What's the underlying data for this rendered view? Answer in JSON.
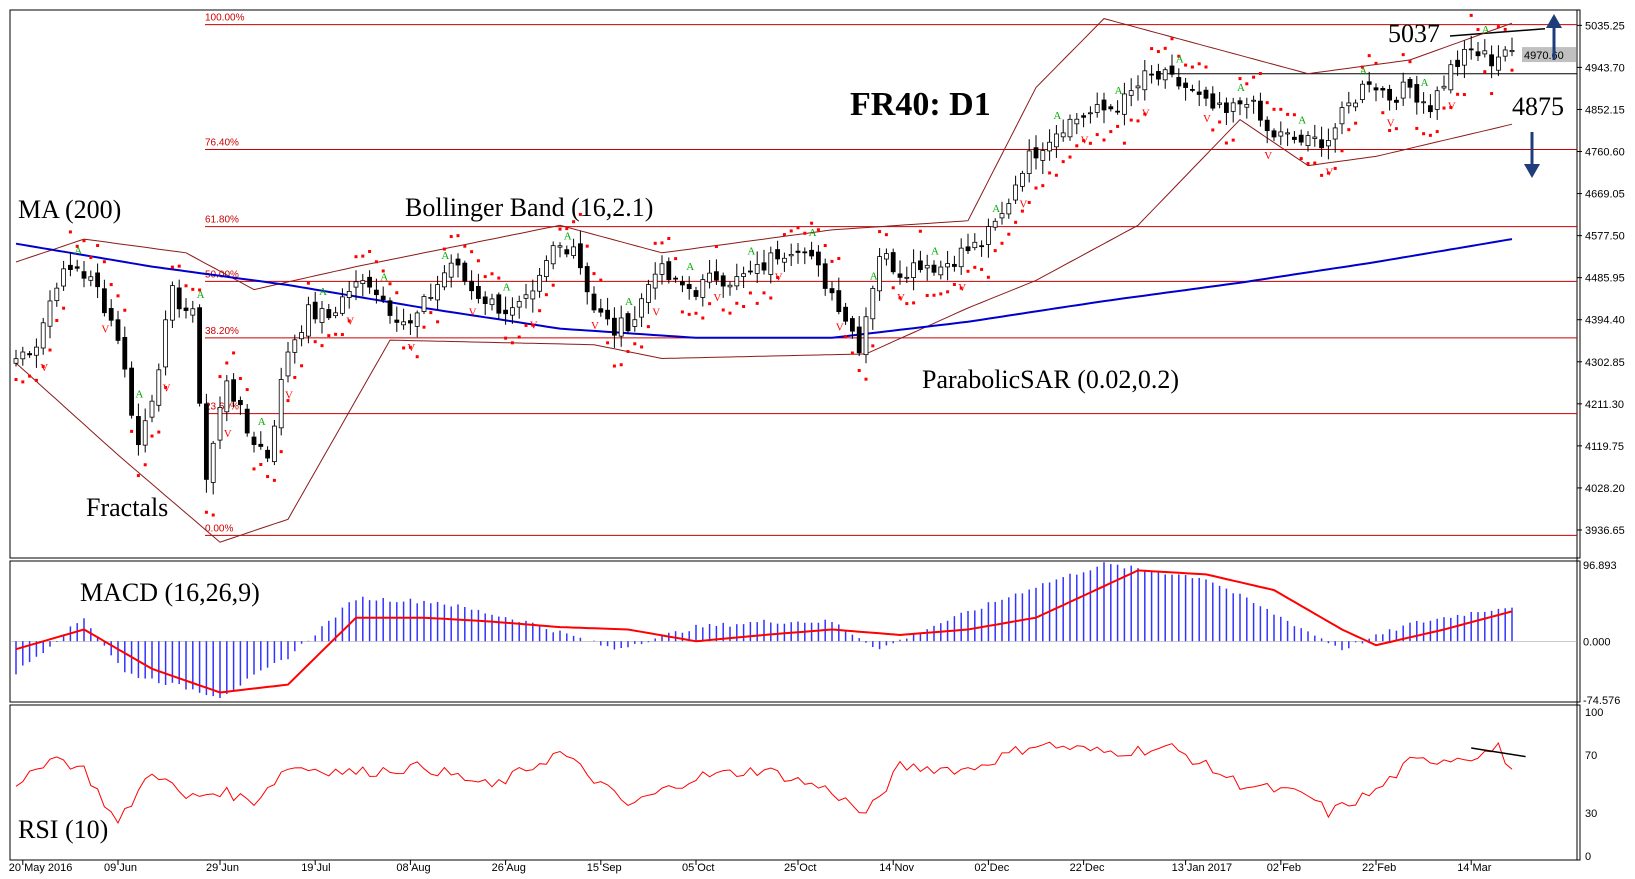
{
  "chart_data": {
    "type": "candlestick",
    "title": "FR40: D1",
    "y_ticks": [
      "5035.25",
      "4943.70",
      "4852.15",
      "4760.60",
      "4669.05",
      "4577.50",
      "4485.95",
      "4394.40",
      "4302.85",
      "4211.30",
      "4119.75",
      "4028.20",
      "3936.65"
    ],
    "current_price_label": "4970.60",
    "x_ticks": [
      "20 May 2016",
      "09 Jun",
      "29 Jun",
      "19 Jul",
      "08 Aug",
      "26 Aug",
      "15 Sep",
      "05 Oct",
      "25 Oct",
      "14 Nov",
      "02 Dec",
      "22 Dec",
      "13 Jan 2017",
      "02 Feb",
      "22 Feb",
      "14 Mar"
    ],
    "fibonacci": [
      {
        "label": "100.00%",
        "value": 5037
      },
      {
        "label": "76.40%",
        "value": 4765
      },
      {
        "label": "61.80%",
        "value": 4597
      },
      {
        "label": "50.00%",
        "value": 4478
      },
      {
        "label": "38.20%",
        "value": 4355
      },
      {
        "label": "23.60%",
        "value": 4190
      },
      {
        "label": "0.00%",
        "value": 3925
      }
    ],
    "levels": {
      "resistance": "5037",
      "support": "4875"
    },
    "indicator_labels": {
      "ma": "MA (200)",
      "bollinger": "Bollinger Band (16,2.1)",
      "fractals": "Fractals",
      "sar": "ParabolicSAR (0.02,0.2)",
      "macd": "MACD (16,26,9)",
      "rsi": "RSI (10)"
    },
    "macd_ticks": [
      "96.893",
      "0.000",
      "-74.576"
    ],
    "rsi_ticks": [
      "100",
      "70",
      "30",
      "0"
    ],
    "close_anchors": [
      [
        0,
        4310
      ],
      [
        3,
        4345
      ],
      [
        6,
        4480
      ],
      [
        9,
        4510
      ],
      [
        12,
        4460
      ],
      [
        15,
        4360
      ],
      [
        18,
        4120
      ],
      [
        20,
        4230
      ],
      [
        23,
        4450
      ],
      [
        26,
        4400
      ],
      [
        28,
        4050
      ],
      [
        31,
        4270
      ],
      [
        34,
        4150
      ],
      [
        37,
        4100
      ],
      [
        40,
        4330
      ],
      [
        43,
        4410
      ],
      [
        46,
        4400
      ],
      [
        49,
        4460
      ],
      [
        52,
        4480
      ],
      [
        55,
        4420
      ],
      [
        58,
        4380
      ],
      [
        61,
        4450
      ],
      [
        64,
        4520
      ],
      [
        67,
        4460
      ],
      [
        70,
        4430
      ],
      [
        73,
        4410
      ],
      [
        76,
        4440
      ],
      [
        79,
        4550
      ],
      [
        82,
        4560
      ],
      [
        85,
        4420
      ],
      [
        88,
        4370
      ],
      [
        91,
        4400
      ],
      [
        94,
        4510
      ],
      [
        97,
        4470
      ],
      [
        100,
        4460
      ],
      [
        103,
        4490
      ],
      [
        106,
        4480
      ],
      [
        109,
        4500
      ],
      [
        112,
        4540
      ],
      [
        115,
        4560
      ],
      [
        118,
        4500
      ],
      [
        121,
        4430
      ],
      [
        124,
        4340
      ],
      [
        127,
        4540
      ],
      [
        130,
        4500
      ],
      [
        133,
        4520
      ],
      [
        136,
        4510
      ],
      [
        139,
        4540
      ],
      [
        142,
        4560
      ],
      [
        145,
        4620
      ],
      [
        148,
        4730
      ],
      [
        151,
        4780
      ],
      [
        154,
        4820
      ],
      [
        157,
        4840
      ],
      [
        160,
        4850
      ],
      [
        163,
        4870
      ],
      [
        166,
        4920
      ],
      [
        169,
        4920
      ],
      [
        172,
        4900
      ],
      [
        175,
        4860
      ],
      [
        178,
        4840
      ],
      [
        181,
        4880
      ],
      [
        184,
        4800
      ],
      [
        187,
        4790
      ],
      [
        190,
        4780
      ],
      [
        193,
        4790
      ],
      [
        196,
        4860
      ],
      [
        199,
        4920
      ],
      [
        202,
        4880
      ],
      [
        205,
        4900
      ],
      [
        208,
        4860
      ],
      [
        211,
        4940
      ],
      [
        214,
        4980
      ],
      [
        217,
        4960
      ],
      [
        219,
        4985
      ],
      [
        220,
        4965
      ]
    ],
    "ma200_anchors": [
      [
        0,
        4560
      ],
      [
        20,
        4510
      ],
      [
        40,
        4470
      ],
      [
        60,
        4420
      ],
      [
        80,
        4375
      ],
      [
        100,
        4355
      ],
      [
        120,
        4355
      ],
      [
        140,
        4390
      ],
      [
        160,
        4435
      ],
      [
        180,
        4475
      ],
      [
        200,
        4520
      ],
      [
        220,
        4570
      ]
    ],
    "bb_upper_anchors": [
      [
        0,
        4520
      ],
      [
        10,
        4570
      ],
      [
        25,
        4540
      ],
      [
        35,
        4460
      ],
      [
        50,
        4510
      ],
      [
        80,
        4600
      ],
      [
        95,
        4540
      ],
      [
        120,
        4590
      ],
      [
        140,
        4610
      ],
      [
        150,
        4900
      ],
      [
        160,
        5050
      ],
      [
        175,
        4990
      ],
      [
        190,
        4930
      ],
      [
        205,
        4960
      ],
      [
        220,
        5040
      ]
    ],
    "bb_lower_anchors": [
      [
        0,
        4300
      ],
      [
        15,
        4100
      ],
      [
        30,
        3910
      ],
      [
        40,
        3960
      ],
      [
        55,
        4350
      ],
      [
        85,
        4340
      ],
      [
        95,
        4310
      ],
      [
        125,
        4320
      ],
      [
        140,
        4420
      ],
      [
        150,
        4480
      ],
      [
        165,
        4600
      ],
      [
        180,
        4830
      ],
      [
        190,
        4730
      ],
      [
        200,
        4750
      ],
      [
        220,
        4820
      ]
    ],
    "macd_line_anchors": [
      [
        0,
        -10
      ],
      [
        10,
        15
      ],
      [
        20,
        -35
      ],
      [
        30,
        -65
      ],
      [
        40,
        -55
      ],
      [
        50,
        30
      ],
      [
        60,
        30
      ],
      [
        70,
        25
      ],
      [
        80,
        18
      ],
      [
        90,
        15
      ],
      [
        100,
        0
      ],
      [
        110,
        8
      ],
      [
        120,
        15
      ],
      [
        130,
        8
      ],
      [
        140,
        15
      ],
      [
        150,
        30
      ],
      [
        165,
        90
      ],
      [
        175,
        85
      ],
      [
        185,
        65
      ],
      [
        195,
        15
      ],
      [
        200,
        -5
      ],
      [
        210,
        15
      ],
      [
        220,
        38
      ]
    ],
    "macd_hist_anchors": [
      [
        0,
        -40
      ],
      [
        10,
        30
      ],
      [
        16,
        -40
      ],
      [
        30,
        -70
      ],
      [
        40,
        -20
      ],
      [
        50,
        55
      ],
      [
        62,
        50
      ],
      [
        75,
        25
      ],
      [
        88,
        -10
      ],
      [
        100,
        18
      ],
      [
        110,
        25
      ],
      [
        120,
        25
      ],
      [
        127,
        -10
      ],
      [
        135,
        20
      ],
      [
        150,
        70
      ],
      [
        160,
        98
      ],
      [
        175,
        80
      ],
      [
        185,
        35
      ],
      [
        195,
        -10
      ],
      [
        205,
        22
      ],
      [
        215,
        38
      ],
      [
        220,
        45
      ]
    ],
    "rsi_anchors": [
      [
        0,
        45
      ],
      [
        5,
        70
      ],
      [
        10,
        60
      ],
      [
        15,
        22
      ],
      [
        20,
        60
      ],
      [
        25,
        40
      ],
      [
        30,
        45
      ],
      [
        35,
        38
      ],
      [
        40,
        62
      ],
      [
        50,
        58
      ],
      [
        60,
        62
      ],
      [
        70,
        48
      ],
      [
        80,
        72
      ],
      [
        90,
        35
      ],
      [
        100,
        55
      ],
      [
        110,
        60
      ],
      [
        120,
        45
      ],
      [
        125,
        28
      ],
      [
        130,
        62
      ],
      [
        140,
        60
      ],
      [
        150,
        78
      ],
      [
        160,
        72
      ],
      [
        170,
        75
      ],
      [
        180,
        50
      ],
      [
        190,
        42
      ],
      [
        193,
        30
      ],
      [
        200,
        45
      ],
      [
        205,
        65
      ],
      [
        215,
        70
      ],
      [
        218,
        75
      ],
      [
        220,
        60
      ]
    ],
    "rsi_trend": [
      [
        214,
        75
      ],
      [
        222,
        69
      ]
    ],
    "colors": {
      "up": "#ffffff",
      "down": "#000000",
      "ma": "#0000cc",
      "bb": "#8b1a1a",
      "sar": "#ff0000",
      "fib": "#cc0000",
      "fractal_up": "#00aa00",
      "fractal_down": "#ff0000",
      "macd_hist": "#3333ff",
      "macd_signal": "#ff0000",
      "rsi": "#ff0000",
      "arrow": "#1f3d7a"
    }
  }
}
